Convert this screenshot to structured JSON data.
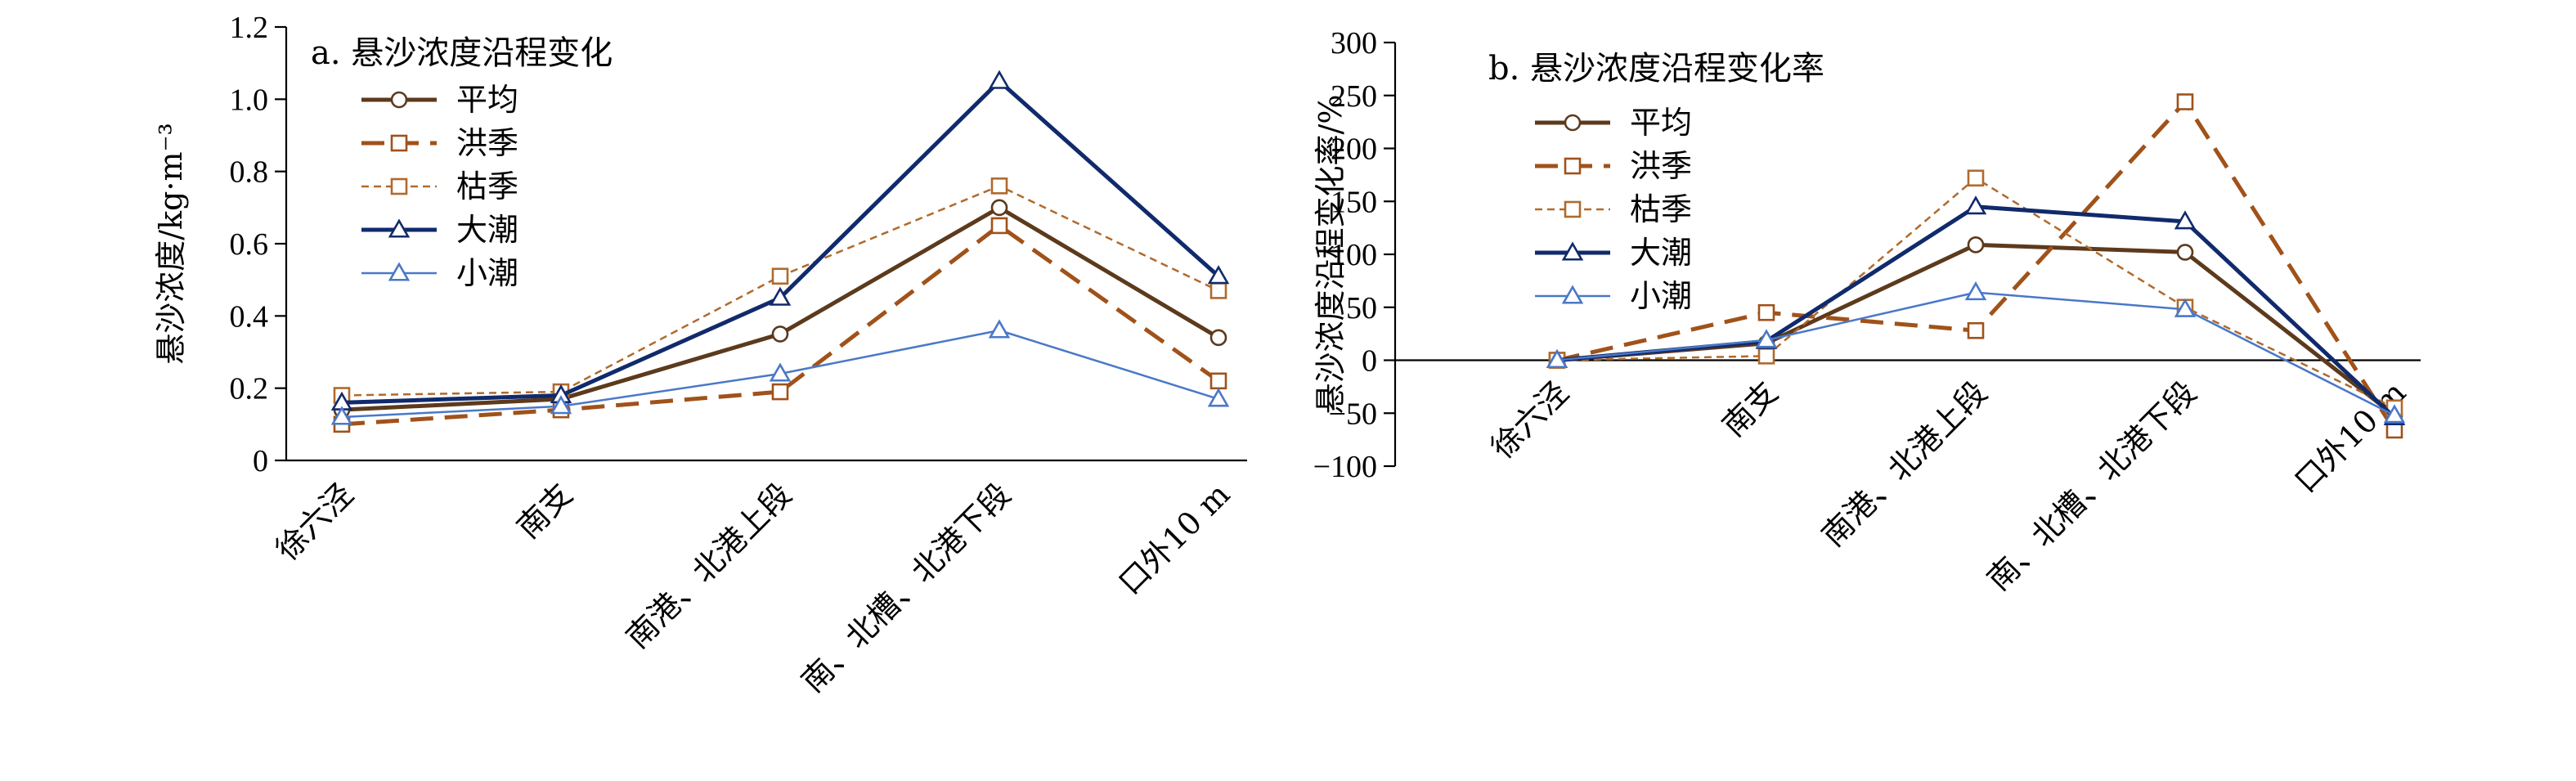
{
  "chart_data": [
    {
      "id": "a",
      "type": "line",
      "title": "a. 悬沙浓度沿程变化",
      "ylabel": "悬沙浓度/kg·m⁻³",
      "ylim": [
        0,
        1.2
      ],
      "yticks": [
        0,
        0.2,
        0.4,
        0.6,
        0.8,
        1.0,
        1.2
      ],
      "ytick_labels": [
        "0",
        "0.2",
        "0.4",
        "0.6",
        "0.8",
        "1.0",
        "1.2"
      ],
      "categories": [
        "徐六泾",
        "南支",
        "南港、北港上段",
        "南、北槽、北港下段",
        "口外10 m"
      ],
      "series": [
        {
          "name": "平均",
          "values": [
            0.14,
            0.17,
            0.35,
            0.7,
            0.34
          ],
          "color": "#5c3a1c",
          "marker": "circle",
          "dash": "solid",
          "width": 5
        },
        {
          "name": "洪季",
          "values": [
            0.1,
            0.14,
            0.19,
            0.65,
            0.22
          ],
          "color": "#a0521a",
          "marker": "square",
          "dash": "long-dash",
          "width": 5
        },
        {
          "name": "枯季",
          "values": [
            0.18,
            0.19,
            0.51,
            0.76,
            0.47
          ],
          "color": "#b06a2c",
          "marker": "square",
          "dash": "short-dash",
          "width": 2.5
        },
        {
          "name": "大潮",
          "values": [
            0.16,
            0.18,
            0.45,
            1.05,
            0.51
          ],
          "color": "#102a6c",
          "marker": "triangle",
          "dash": "solid",
          "width": 5
        },
        {
          "name": "小潮",
          "values": [
            0.12,
            0.15,
            0.24,
            0.36,
            0.17
          ],
          "color": "#4a78c8",
          "marker": "triangle",
          "dash": "solid",
          "width": 2.5
        }
      ],
      "legend": "top-left"
    },
    {
      "id": "b",
      "type": "line",
      "title": "b. 悬沙浓度沿程变化率",
      "ylabel": "悬沙浓度沿程变化率/%",
      "ylim": [
        -100,
        300
      ],
      "yticks": [
        -100,
        -50,
        0,
        50,
        100,
        150,
        200,
        250,
        300
      ],
      "ytick_labels": [
        "−100",
        "−50",
        "0",
        "50",
        "100",
        "150",
        "200",
        "250",
        "300"
      ],
      "categories": [
        "徐六泾",
        "南支",
        "南港、北港上段",
        "南、北槽、北港下段",
        "口外10 m"
      ],
      "series": [
        {
          "name": "平均",
          "values": [
            0,
            16,
            109,
            102,
            -52
          ],
          "color": "#5c3a1c",
          "marker": "circle",
          "dash": "solid",
          "width": 5
        },
        {
          "name": "洪季",
          "values": [
            0,
            45,
            28,
            244,
            -66
          ],
          "color": "#a0521a",
          "marker": "square",
          "dash": "long-dash",
          "width": 5
        },
        {
          "name": "枯季",
          "values": [
            0,
            4,
            172,
            50,
            -45
          ],
          "color": "#b06a2c",
          "marker": "square",
          "dash": "short-dash",
          "width": 2.5
        },
        {
          "name": "大潮",
          "values": [
            0,
            18,
            145,
            131,
            -54
          ],
          "color": "#102a6c",
          "marker": "triangle",
          "dash": "solid",
          "width": 5
        },
        {
          "name": "小潮",
          "values": [
            0,
            19,
            64,
            48,
            -52
          ],
          "color": "#4a78c8",
          "marker": "triangle",
          "dash": "solid",
          "width": 2.5
        }
      ],
      "legend": "top-left"
    }
  ]
}
